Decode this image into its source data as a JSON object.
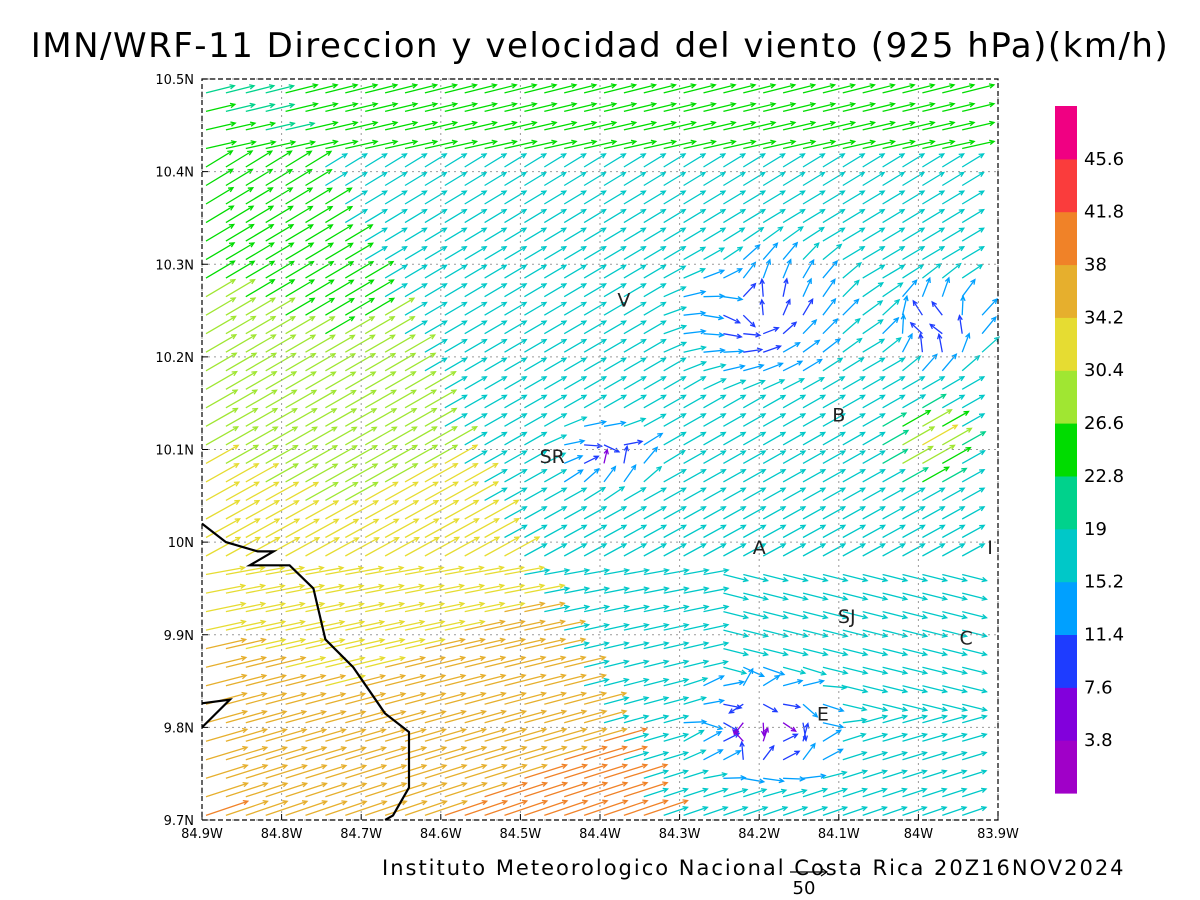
{
  "title": "IMN/WRF-11 Direccion y velocidad del viento (925 hPa)(km/h)",
  "credit": "Instituto Meteorologico Nacional Costa Rica 20Z16NOV2024",
  "reference_vector": {
    "label": "50",
    "speed_kmh": 50
  },
  "map": {
    "lon_range": [
      -84.9,
      -83.9
    ],
    "lat_range": [
      9.7,
      10.5
    ],
    "grid": true,
    "x_ticks": [
      {
        "lon": -84.9,
        "label": "84.9W"
      },
      {
        "lon": -84.8,
        "label": "84.8W"
      },
      {
        "lon": -84.7,
        "label": "84.7W"
      },
      {
        "lon": -84.6,
        "label": "84.6W"
      },
      {
        "lon": -84.5,
        "label": "84.5W"
      },
      {
        "lon": -84.4,
        "label": "84.4W"
      },
      {
        "lon": -84.3,
        "label": "84.3W"
      },
      {
        "lon": -84.2,
        "label": "84.2W"
      },
      {
        "lon": -84.1,
        "label": "84.1W"
      },
      {
        "lon": -84.0,
        "label": "84W"
      },
      {
        "lon": -83.9,
        "label": "83.9W"
      }
    ],
    "y_ticks": [
      {
        "lat": 9.7,
        "label": "9.7N"
      },
      {
        "lat": 9.8,
        "label": "9.8N"
      },
      {
        "lat": 9.9,
        "label": "9.9N"
      },
      {
        "lat": 10.0,
        "label": "10N"
      },
      {
        "lat": 10.1,
        "label": "10.1N"
      },
      {
        "lat": 10.2,
        "label": "10.2N"
      },
      {
        "lat": 10.3,
        "label": "10.3N"
      },
      {
        "lat": 10.4,
        "label": "10.4N"
      },
      {
        "lat": 10.5,
        "label": "10.5N"
      }
    ],
    "places": [
      {
        "label": "V",
        "lon": -84.37,
        "lat": 10.262
      },
      {
        "label": "SR",
        "lon": -84.46,
        "lat": 10.093
      },
      {
        "label": "B",
        "lon": -84.1,
        "lat": 10.138
      },
      {
        "label": "A",
        "lon": -84.2,
        "lat": 9.995
      },
      {
        "label": "I",
        "lon": -83.91,
        "lat": 9.995
      },
      {
        "label": "SJ",
        "lon": -84.09,
        "lat": 9.92
      },
      {
        "label": "C",
        "lon": -83.94,
        "lat": 9.897
      },
      {
        "label": "E",
        "lon": -84.12,
        "lat": 9.815
      }
    ],
    "coastline": [
      [
        -84.9,
        10.02
      ],
      [
        -84.87,
        10.0
      ],
      [
        -84.83,
        9.99
      ],
      [
        -84.81,
        9.99
      ],
      [
        -84.84,
        9.975
      ],
      [
        -84.79,
        9.975
      ],
      [
        -84.76,
        9.95
      ],
      [
        -84.745,
        9.895
      ],
      [
        -84.71,
        9.865
      ],
      [
        -84.67,
        9.815
      ],
      [
        -84.64,
        9.795
      ],
      [
        -84.64,
        9.735
      ],
      [
        -84.66,
        9.705
      ],
      [
        -84.67,
        9.7
      ]
    ],
    "island_lines": [
      [
        [
          -84.9,
          9.826
        ],
        [
          -84.865,
          9.83
        ],
        [
          -84.9,
          9.8
        ]
      ]
    ]
  },
  "colorbar": {
    "colors": [
      "#a000c8",
      "#8200dc",
      "#1e3cff",
      "#00a0ff",
      "#00c8c8",
      "#00d28c",
      "#00dc00",
      "#a0e632",
      "#e6dc32",
      "#e6af2d",
      "#f08228",
      "#fa3c3c",
      "#f00082"
    ],
    "labels": [
      "3.8",
      "7.6",
      "11.4",
      "15.2",
      "19",
      "22.8",
      "26.6",
      "30.4",
      "34.2",
      "38",
      "41.8",
      "45.6"
    ]
  },
  "wind_field": {
    "lon_spacing": 0.025,
    "lat_spacing": 0.02,
    "features": [
      {
        "type": "coastal_westerly",
        "speed_range_kmh": [
          30,
          46
        ]
      },
      {
        "type": "cyclonic_eddy",
        "lon": -84.2,
        "lat": 10.24,
        "speed_kmh": 8
      },
      {
        "type": "calm_area",
        "lon": -84.4,
        "lat": 10.09,
        "speed_kmh": 5
      },
      {
        "type": "calm_area",
        "lon": -84.2,
        "lat": 9.8,
        "speed_kmh": 4
      },
      {
        "type": "convergence",
        "lon": -84.0,
        "lat": 10.1,
        "speed_kmh": 36
      }
    ]
  }
}
